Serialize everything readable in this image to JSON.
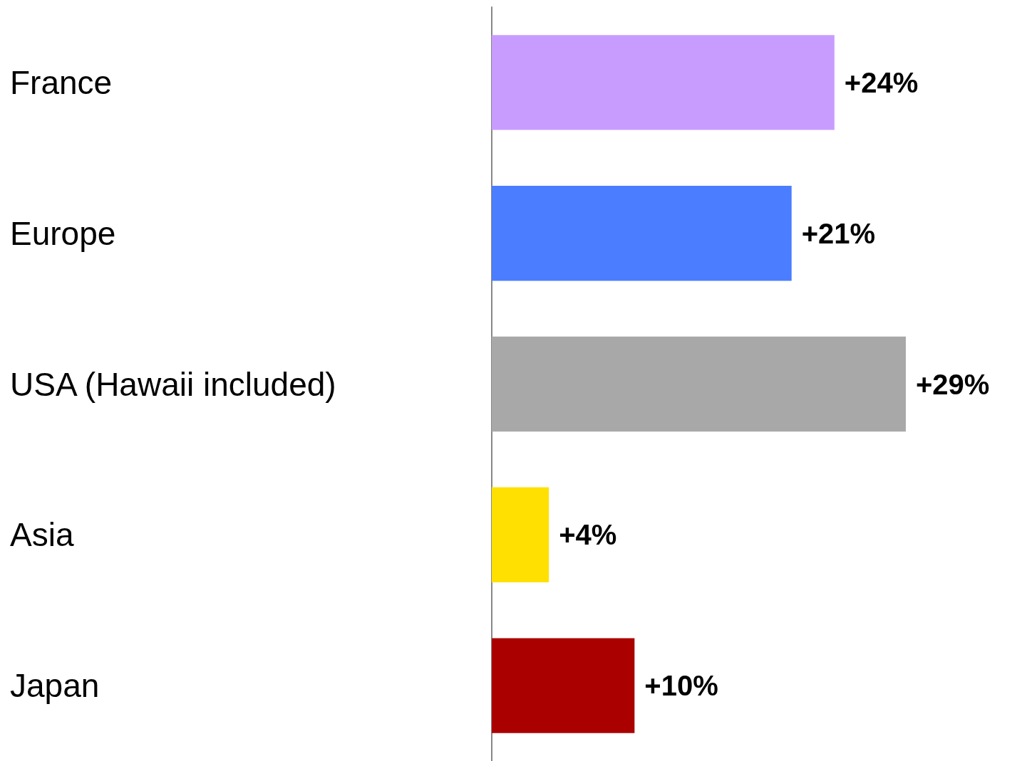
{
  "chart_data": {
    "type": "bar",
    "orientation": "horizontal",
    "categories": [
      "France",
      "Europe",
      "USA (Hawaii included)",
      "Asia",
      "Japan"
    ],
    "values": [
      24,
      21,
      29,
      4,
      10
    ],
    "value_labels": [
      "+24%",
      "+21%",
      "+29%",
      "+4%",
      "+10%"
    ],
    "colors": [
      "#c89cff",
      "#4a7dff",
      "#a8a8a8",
      "#ffe000",
      "#aa0000"
    ]
  }
}
